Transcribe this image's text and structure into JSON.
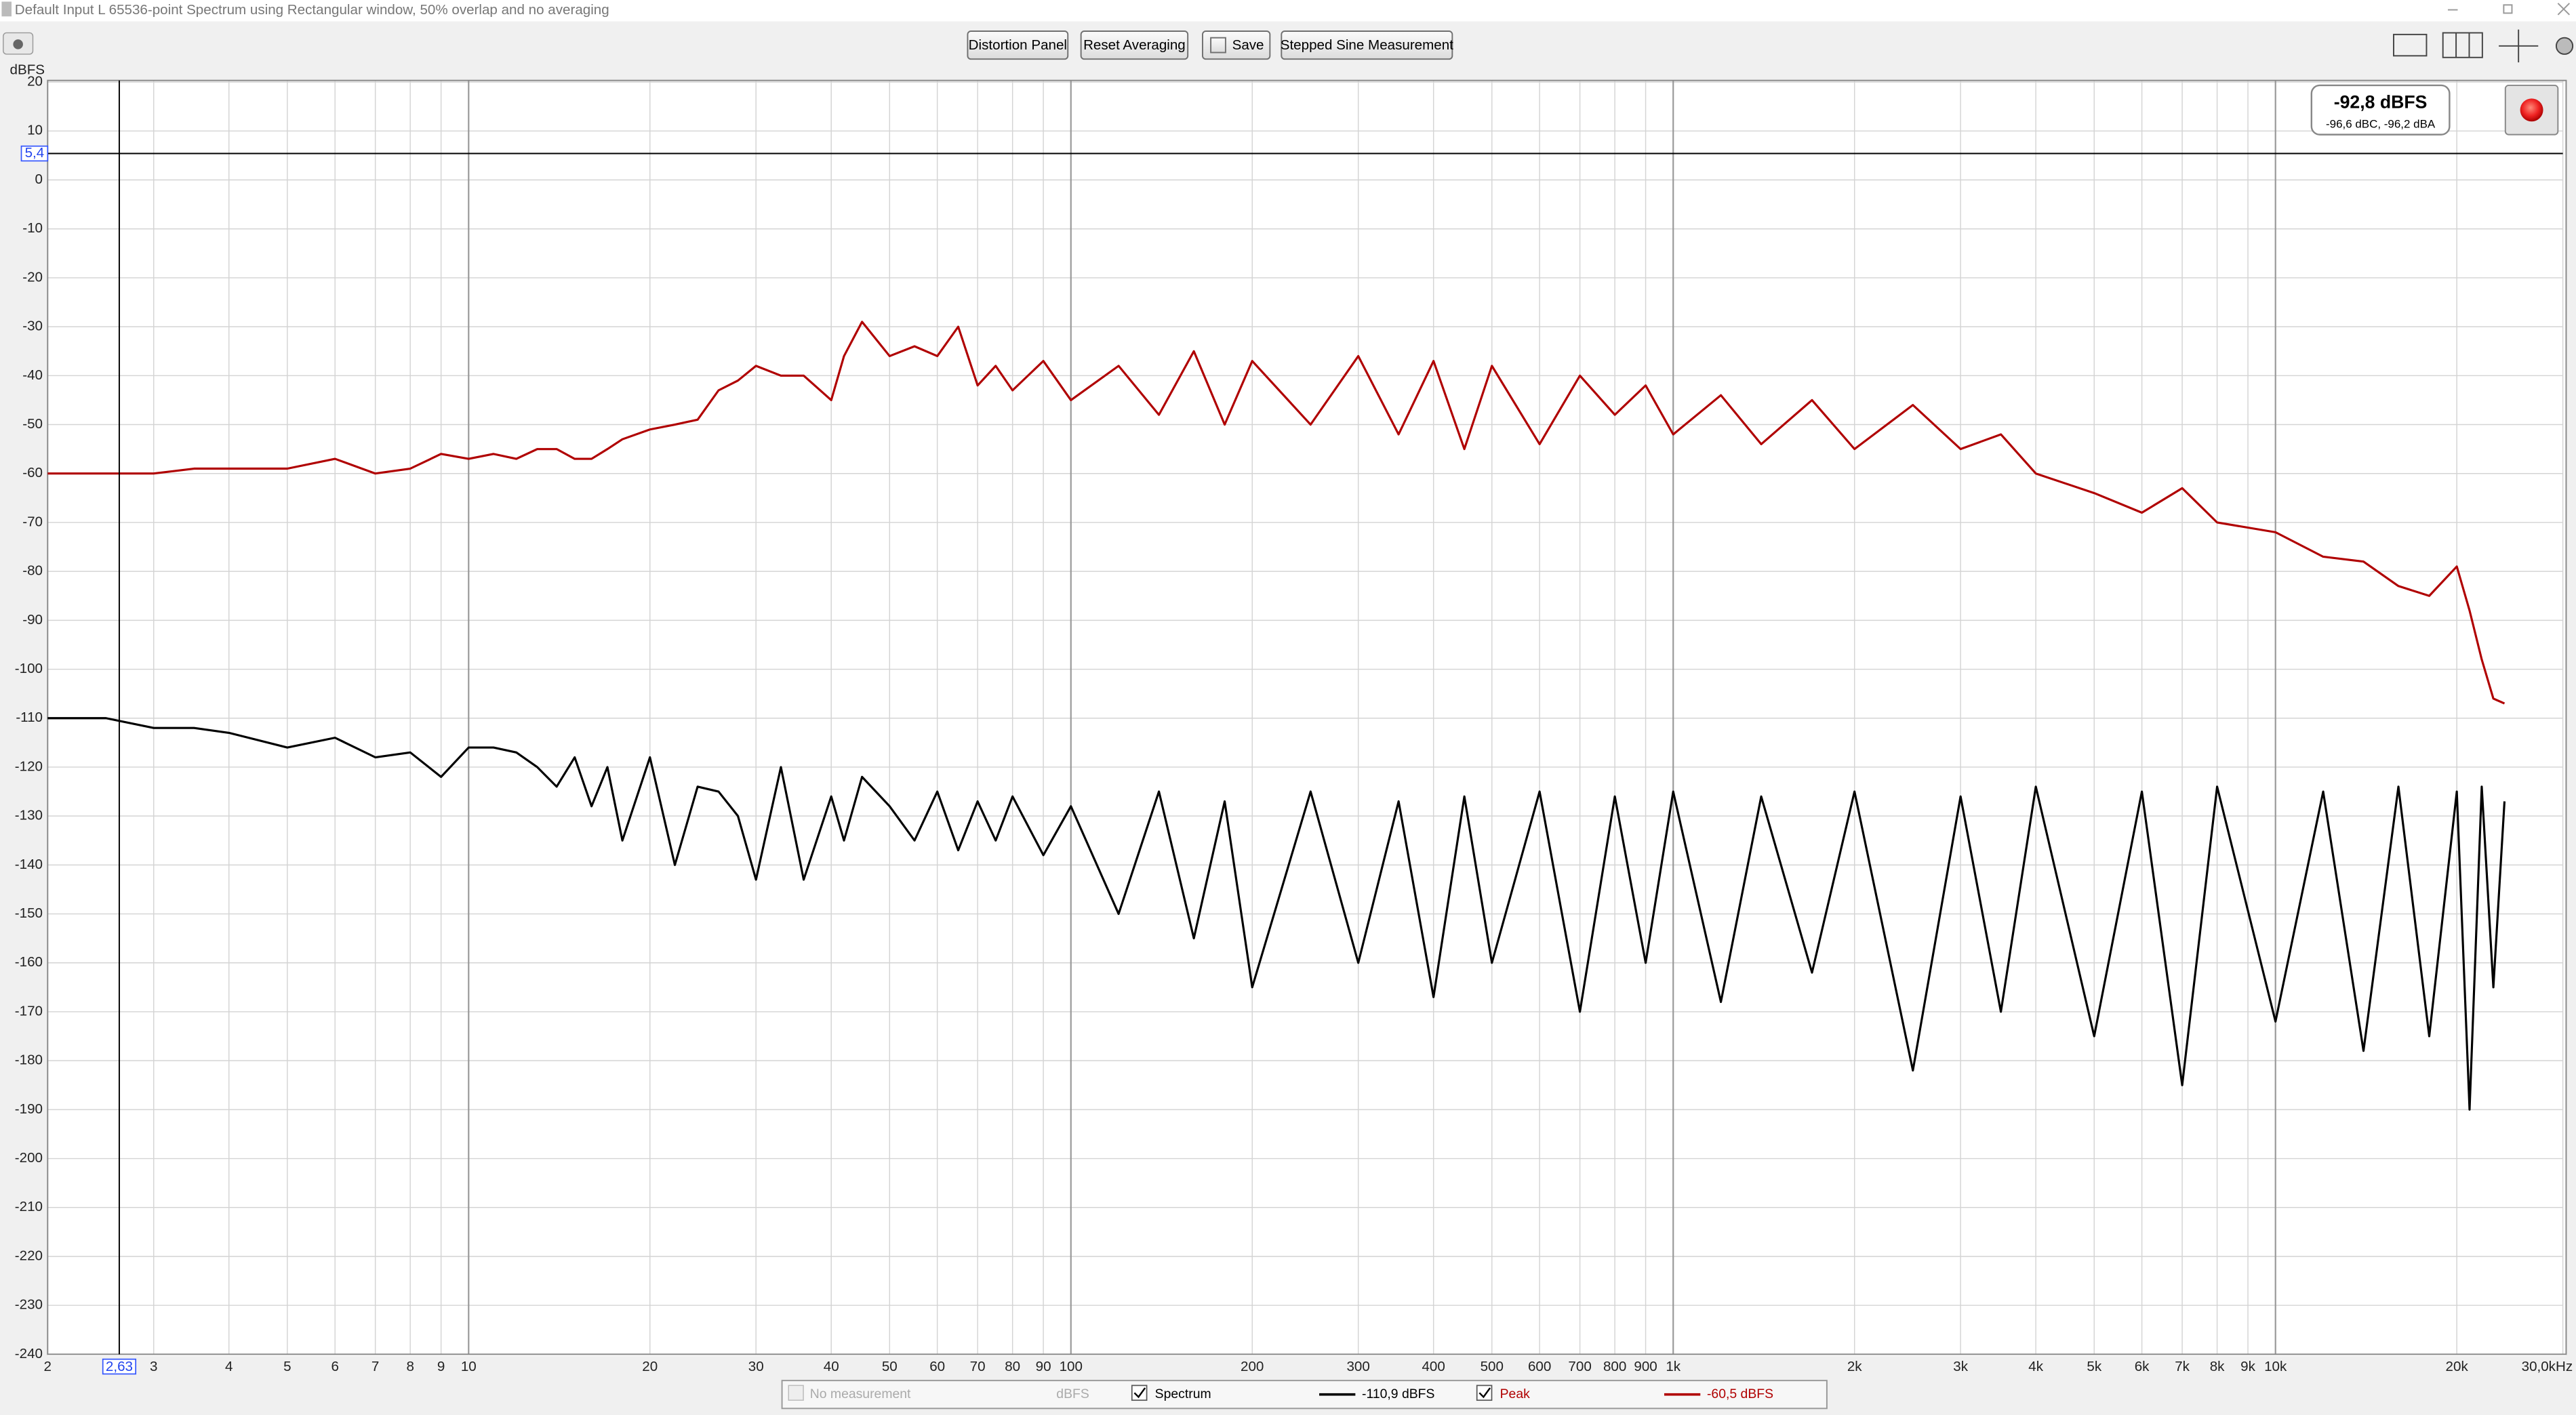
{
  "window": {
    "title": "Default Input L 65536-point Spectrum using Rectangular window, 50% overlap and no averaging"
  },
  "toolbar": {
    "buttons": [
      "Distortion Panel",
      "Reset Averaging",
      "Save",
      "Stepped Sine Measurement"
    ]
  },
  "readout": {
    "main": "-92,8 dBFS",
    "sub": "-96,6 dBC, -96,2 dBA"
  },
  "legend": {
    "placeholder": "No measurement",
    "placeholder_unit": "dBFS"
  },
  "chart_data": {
    "type": "line",
    "y_label": "dBFS",
    "log_x": true,
    "grid": true,
    "xlim": [
      2,
      30000
    ],
    "ylim": [
      -240,
      20
    ],
    "xticks": [
      2,
      3,
      4,
      5,
      6,
      7,
      8,
      9,
      10,
      20,
      30,
      40,
      50,
      60,
      70,
      80,
      90,
      100,
      200,
      300,
      400,
      500,
      600,
      700,
      800,
      900,
      {
        "value": 1000,
        "label": "1k"
      },
      {
        "value": 2000,
        "label": "2k"
      },
      {
        "value": 3000,
        "label": "3k"
      },
      {
        "value": 4000,
        "label": "4k"
      },
      {
        "value": 5000,
        "label": "5k"
      },
      {
        "value": 6000,
        "label": "6k"
      },
      {
        "value": 7000,
        "label": "7k"
      },
      {
        "value": 8000,
        "label": "8k"
      },
      {
        "value": 9000,
        "label": "9k"
      },
      {
        "value": 10000,
        "label": "10k"
      },
      {
        "value": 20000,
        "label": "20k"
      },
      {
        "value": 30000,
        "label": "30,0kHz"
      }
    ],
    "yticks": [
      20,
      10,
      0,
      -10,
      -20,
      -30,
      -40,
      -50,
      -60,
      -70,
      -80,
      -90,
      -100,
      -110,
      -120,
      -130,
      -140,
      -150,
      -160,
      -170,
      -180,
      -190,
      -200,
      -210,
      -220,
      -230,
      -240
    ],
    "cursor": {
      "x": {
        "value": 2.63,
        "label": "2,63"
      },
      "y": {
        "value": 5.4,
        "label": "5,4"
      }
    },
    "x": [
      2,
      2.5,
      3,
      3.5,
      4,
      5,
      6,
      7,
      8,
      9,
      10,
      11,
      12,
      13,
      14,
      15,
      16,
      17,
      18,
      20,
      22,
      24,
      26,
      28,
      30,
      33,
      36,
      40,
      42,
      45,
      50,
      55,
      60,
      65,
      70,
      75,
      80,
      90,
      100,
      120,
      140,
      160,
      180,
      200,
      250,
      300,
      350,
      400,
      450,
      500,
      600,
      700,
      800,
      900,
      1000,
      1200,
      1400,
      1700,
      2000,
      2500,
      3000,
      3500,
      4000,
      5000,
      6000,
      7000,
      8000,
      10000,
      12000,
      14000,
      16000,
      18000,
      20000,
      21000,
      22000,
      23000,
      24000
    ],
    "series": [
      {
        "name": "Spectrum",
        "color": "#000000",
        "readout": "-110,9 dBFS",
        "values": [
          -110,
          -110,
          -112,
          -112,
          -113,
          -116,
          -114,
          -118,
          -117,
          -122,
          -116,
          -116,
          -117,
          -120,
          -124,
          -118,
          -128,
          -120,
          -135,
          -118,
          -140,
          -124,
          -125,
          -130,
          -143,
          -120,
          -143,
          -126,
          -135,
          -122,
          -128,
          -135,
          -125,
          -137,
          -127,
          -135,
          -126,
          -138,
          -128,
          -150,
          -125,
          -155,
          -127,
          -165,
          -125,
          -160,
          -127,
          -167,
          -126,
          -160,
          -125,
          -170,
          -126,
          -160,
          -125,
          -168,
          -126,
          -162,
          -125,
          -182,
          -126,
          -170,
          -124,
          -175,
          -125,
          -185,
          -124,
          -172,
          -125,
          -178,
          -124,
          -175,
          -125,
          -190,
          -124,
          -165,
          -127
        ]
      },
      {
        "name": "Peak",
        "color": "#b00000",
        "readout": "-60,5 dBFS",
        "values": [
          -60,
          -60,
          -60,
          -59,
          -59,
          -59,
          -57,
          -60,
          -59,
          -56,
          -57,
          -56,
          -57,
          -55,
          -55,
          -57,
          -57,
          -55,
          -53,
          -51,
          -50,
          -49,
          -43,
          -41,
          -38,
          -40,
          -40,
          -45,
          -36,
          -29,
          -36,
          -34,
          -36,
          -30,
          -42,
          -38,
          -43,
          -37,
          -45,
          -38,
          -48,
          -35,
          -50,
          -37,
          -50,
          -36,
          -52,
          -37,
          -55,
          -38,
          -54,
          -40,
          -48,
          -42,
          -52,
          -44,
          -54,
          -45,
          -55,
          -46,
          -55,
          -52,
          -60,
          -64,
          -68,
          -63,
          -70,
          -72,
          -77,
          -78,
          -83,
          -85,
          -79,
          -88,
          -98,
          -106,
          -107
        ]
      }
    ]
  }
}
